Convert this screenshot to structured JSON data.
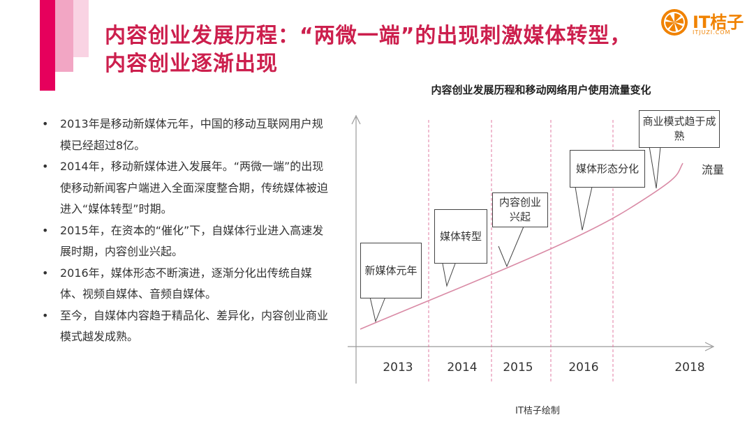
{
  "header": {
    "title": "内容创业发展历程：“两微一端”的出现刺激媒体转型，内容创业逐渐出现"
  },
  "logo": {
    "name": "IT桔子",
    "sub": "ITJUZI.COM",
    "accent": "#f08200"
  },
  "bullets": [
    "2013年是移动新媒体元年，中国的移动互联网用户规模已经超过8亿。",
    "2014年，移动新媒体进入发展年。“两微一端”的出现使移动新闻客户端进入全面深度整合期，传统媒体被迫进入“媒体转型”时期。",
    "2015年，在资本的“催化”下，自媒体行业进入高速发展时期，内容创业兴起。",
    "2016年，媒体形态不断演进，逐渐分化出传统自媒体、视频自媒体、音频自媒体。",
    "至今，自媒体内容趋于精品化、差异化，内容创业商业模式越发成熟。"
  ],
  "bullet_marker": "•",
  "chart": {
    "title": "内容创业发展历程和移动网络用户使用流量变化",
    "years": [
      "2013",
      "2014",
      "2015",
      "2016",
      "2018"
    ],
    "series_label": "流量",
    "callouts": [
      "新媒体元年",
      "媒体转型",
      "内容创业兴起",
      "媒体形态分化",
      "商业模式趋于成熟"
    ],
    "credit": "IT桔子绘制",
    "colors": {
      "curve": "#d98aa5",
      "axis": "#999999",
      "divider": "#e07aa0",
      "title": "#cc1f4d"
    }
  }
}
